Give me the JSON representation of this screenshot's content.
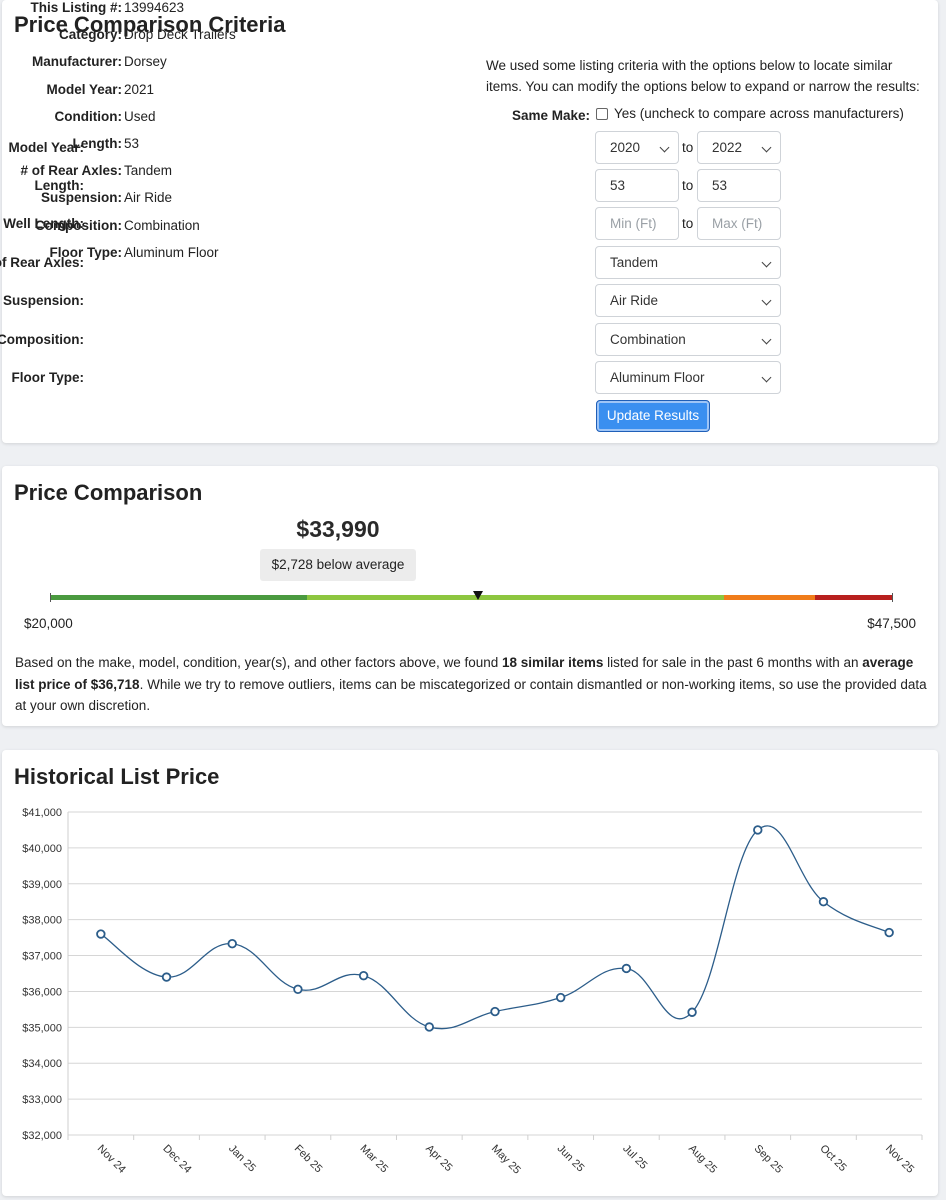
{
  "criteria": {
    "title": "Price Comparison Criteria",
    "specs": [
      {
        "label": "This Listing #:",
        "value": "13994623"
      },
      {
        "label": "Category:",
        "value": "Drop Deck Trailers"
      },
      {
        "label": "Manufacturer:",
        "value": "Dorsey"
      },
      {
        "label": "Model Year:",
        "value": "2021"
      },
      {
        "label": "Condition:",
        "value": "Used"
      },
      {
        "label": "Length:",
        "value": "53"
      },
      {
        "label": "# of Rear Axles:",
        "value": "Tandem"
      },
      {
        "label": "Suspension:",
        "value": "Air Ride"
      },
      {
        "label": "Composition:",
        "value": "Combination"
      },
      {
        "label": "Floor Type:",
        "value": "Aluminum Floor"
      }
    ],
    "intro": "We used some listing criteria with the options below to locate similar items. You can modify the options below to expand or narrow the results:",
    "same_make": {
      "label": "Same Make:",
      "checkbox_label": "Yes (uncheck to compare across manufacturers)",
      "checked": false
    },
    "to_word": "to",
    "model_year": {
      "label": "Model Year:",
      "from": "2020",
      "to": "2022"
    },
    "length": {
      "label": "Length:",
      "from": "53",
      "to": "53"
    },
    "well_length": {
      "label": "Well Length:",
      "from_placeholder": "Min (Ft)",
      "to_placeholder": "Max (Ft)"
    },
    "rear_axles": {
      "label": "# of Rear Axles:",
      "value": "Tandem"
    },
    "suspension": {
      "label": "Suspension:",
      "value": "Air Ride"
    },
    "composition": {
      "label": "Composition:",
      "value": "Combination"
    },
    "floor_type": {
      "label": "Floor Type:",
      "value": "Aluminum Floor"
    },
    "update_button": "Update Results",
    "accent_color": "#3a8ff0"
  },
  "price_comparison": {
    "title": "Price Comparison",
    "price": "$33,990",
    "difference": "$2,728 below average",
    "range_min_label": "$20,000",
    "range_max_label": "$47,500",
    "range_min": 20000,
    "range_max": 47500,
    "listing_price": 33990,
    "bar_segments": [
      {
        "from": 20000,
        "to": 28400,
        "color": "#4a9a3f"
      },
      {
        "from": 28400,
        "to": 36718,
        "color": "#8dc63f"
      },
      {
        "from": 36718,
        "to": 42000,
        "color": "#8dc63f"
      },
      {
        "from": 42000,
        "to": 45000,
        "color": "#f07c1a"
      },
      {
        "from": 45000,
        "to": 47500,
        "color": "#b8201e"
      }
    ],
    "summary": {
      "part1": "Based on the make, model, condition, year(s), and other factors above, we found ",
      "count": "18 similar items",
      "part2": " listed for sale in the past 6 months with an ",
      "avg": "average list price of $36,718",
      "part3": ". While we try to remove outliers, items can be miscategorized or contain dismantled or non-working items, so use the provided data at your own discretion."
    }
  },
  "history": {
    "title": "Historical List Price"
  },
  "chart_data": {
    "type": "line",
    "title": "",
    "xlabel": "",
    "ylabel": "",
    "categories": [
      "Nov 24",
      "Dec 24",
      "Jan 25",
      "Feb 25",
      "Mar 25",
      "Apr 25",
      "May 25",
      "Jun 25",
      "Jul 25",
      "Aug 25",
      "Sep 25",
      "Oct 25",
      "Nov 25"
    ],
    "values": [
      37600,
      36400,
      37330,
      36060,
      36440,
      35010,
      35440,
      35830,
      36640,
      35420,
      40500,
      38500,
      37640
    ],
    "ylim": [
      32000,
      41000
    ],
    "yticks": [
      "$32,000",
      "$33,000",
      "$34,000",
      "$35,000",
      "$36,000",
      "$37,000",
      "$38,000",
      "$39,000",
      "$40,000",
      "$41,000"
    ],
    "grid": true,
    "line_color": "#2c5d8a"
  }
}
